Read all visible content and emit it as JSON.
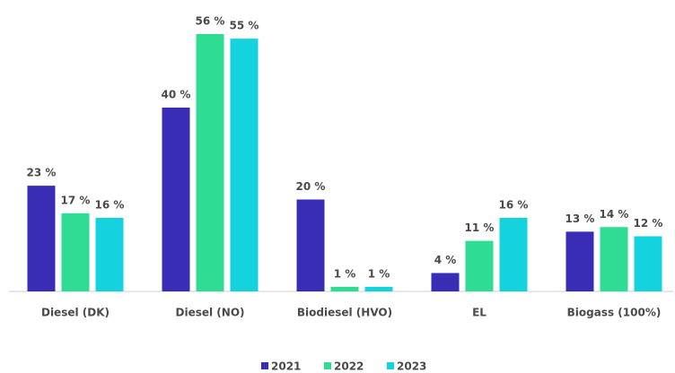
{
  "chart_data": {
    "type": "bar",
    "categories": [
      "Diesel (DK)",
      "Diesel (NO)",
      "Biodiesel (HVO)",
      "EL",
      "Biogass (100%)"
    ],
    "series": [
      {
        "name": "2021",
        "color": "#3a2db5",
        "values": [
          23,
          40,
          20,
          4,
          13
        ],
        "value_labels": [
          "23 %",
          "40 %",
          "20 %",
          "4 %",
          "13 %"
        ]
      },
      {
        "name": "2022",
        "color": "#2fdc93",
        "values": [
          17,
          56,
          1,
          11,
          14
        ],
        "value_labels": [
          "17 %",
          "56 %",
          "1 %",
          "11 %",
          "14 %"
        ]
      },
      {
        "name": "2023",
        "color": "#14d3df",
        "values": [
          16,
          55,
          1,
          16,
          12
        ],
        "value_labels": [
          "16 %",
          "55 %",
          "1 %",
          "16 %",
          "12 %"
        ]
      }
    ],
    "legend": "bottom"
  }
}
